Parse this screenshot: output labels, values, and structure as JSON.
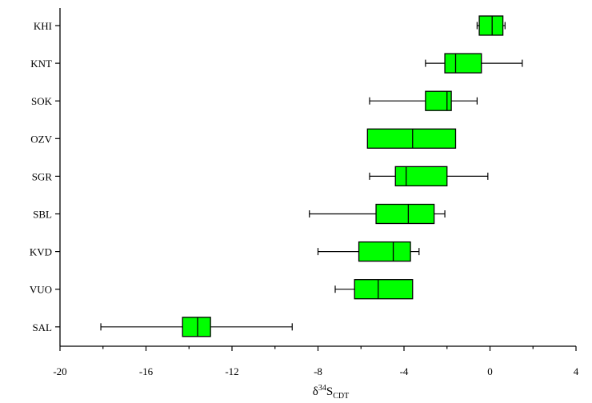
{
  "chart_data": {
    "type": "boxplot",
    "orientation": "horizontal",
    "title": "",
    "xlabel": {
      "prefix": "δ",
      "sup": "34",
      "main": "S",
      "sub": "CDT"
    },
    "ylabel": "",
    "xlim": [
      -20,
      4
    ],
    "xticks": [
      -20,
      -16,
      -12,
      -8,
      -4,
      0,
      4
    ],
    "x_minor_step": 2,
    "grid": false,
    "box_color": "#00ff00",
    "categories": [
      "KHI",
      "KNT",
      "SOK",
      "OZV",
      "SGR",
      "SBL",
      "KVD",
      "VUO",
      "SAL"
    ],
    "boxes": [
      {
        "label": "KHI",
        "whisker_low": -0.6,
        "q1": -0.5,
        "median": 0.1,
        "q3": 0.6,
        "whisker_high": 0.7
      },
      {
        "label": "KNT",
        "whisker_low": -3.0,
        "q1": -2.1,
        "median": -1.6,
        "q3": -0.4,
        "whisker_high": 1.5
      },
      {
        "label": "SOK",
        "whisker_low": -5.6,
        "q1": -3.0,
        "median": -2.0,
        "q3": -1.8,
        "whisker_high": -0.6
      },
      {
        "label": "OZV",
        "whisker_low": -5.7,
        "q1": -5.7,
        "median": -3.6,
        "q3": -1.6,
        "whisker_high": -1.6
      },
      {
        "label": "SGR",
        "whisker_low": -5.6,
        "q1": -4.4,
        "median": -3.9,
        "q3": -2.0,
        "whisker_high": -0.1
      },
      {
        "label": "SBL",
        "whisker_low": -8.4,
        "q1": -5.3,
        "median": -3.8,
        "q3": -2.6,
        "whisker_high": -2.1
      },
      {
        "label": "KVD",
        "whisker_low": -8.0,
        "q1": -6.1,
        "median": -4.5,
        "q3": -3.7,
        "whisker_high": -3.3
      },
      {
        "label": "VUO",
        "whisker_low": -7.2,
        "q1": -6.3,
        "median": -5.2,
        "q3": -3.6,
        "whisker_high": -3.6
      },
      {
        "label": "SAL",
        "whisker_low": -18.1,
        "q1": -14.3,
        "median": -13.6,
        "q3": -13.0,
        "whisker_high": -9.2
      }
    ]
  }
}
